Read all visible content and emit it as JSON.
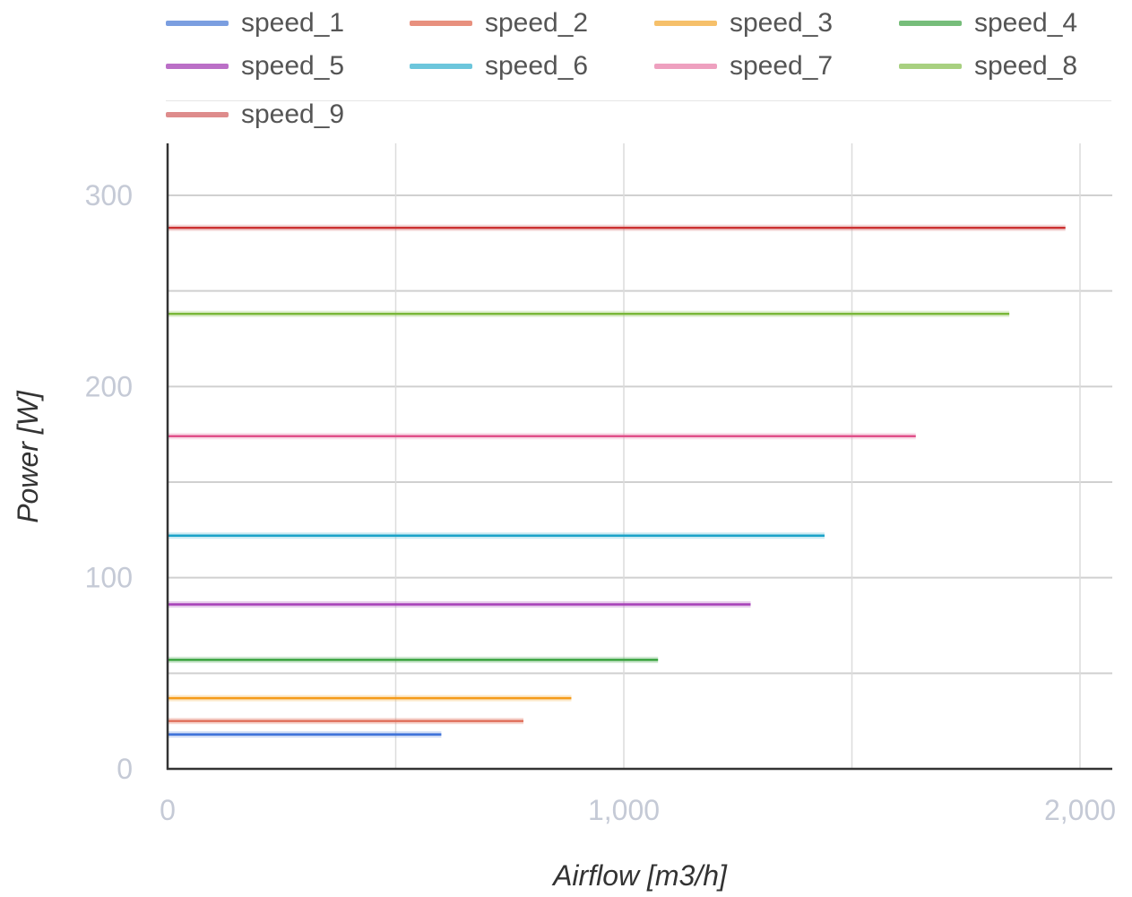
{
  "chart_data": {
    "type": "line",
    "xlabel": "Airflow [m3/h]",
    "ylabel": "Power [W]",
    "xlim": [
      0,
      2070
    ],
    "ylim": [
      0,
      320
    ],
    "x_ticks": [
      0,
      1000,
      2000
    ],
    "x_tick_labels": [
      "0",
      "1,000",
      "2,000"
    ],
    "y_ticks": [
      0,
      100,
      200,
      300
    ],
    "y_tick_labels": [
      "0",
      "100",
      "200",
      "300"
    ],
    "grid": true,
    "legend_position": "top",
    "series": [
      {
        "name": "speed_1",
        "color": "#7b9ee0",
        "line_color": "#3a6fd8",
        "x": [
          0,
          600
        ],
        "y": [
          18,
          18
        ]
      },
      {
        "name": "speed_2",
        "color": "#e8907e",
        "line_color": "#e0705c",
        "x": [
          0,
          780
        ],
        "y": [
          25,
          25
        ]
      },
      {
        "name": "speed_3",
        "color": "#f6c06a",
        "line_color": "#f59b1a",
        "x": [
          0,
          885
        ],
        "y": [
          37,
          37
        ]
      },
      {
        "name": "speed_4",
        "color": "#76bd7a",
        "line_color": "#3aa33f",
        "x": [
          0,
          1075
        ],
        "y": [
          57,
          57
        ]
      },
      {
        "name": "speed_5",
        "color": "#bb6fc7",
        "line_color": "#a63fb8",
        "x": [
          0,
          1278
        ],
        "y": [
          86,
          86
        ]
      },
      {
        "name": "speed_6",
        "color": "#6cc6dc",
        "line_color": "#1aa3c8",
        "x": [
          0,
          1440
        ],
        "y": [
          122,
          122
        ]
      },
      {
        "name": "speed_7",
        "color": "#eea0bf",
        "line_color": "#e0508a",
        "x": [
          0,
          1640
        ],
        "y": [
          174,
          174
        ]
      },
      {
        "name": "speed_8",
        "color": "#a8d080",
        "line_color": "#7ab83a",
        "x": [
          0,
          1845
        ],
        "y": [
          238,
          238
        ]
      },
      {
        "name": "speed_9",
        "color": "#de8c8c",
        "line_color": "#cc3333",
        "x": [
          0,
          1968
        ],
        "y": [
          283,
          283
        ]
      }
    ]
  }
}
